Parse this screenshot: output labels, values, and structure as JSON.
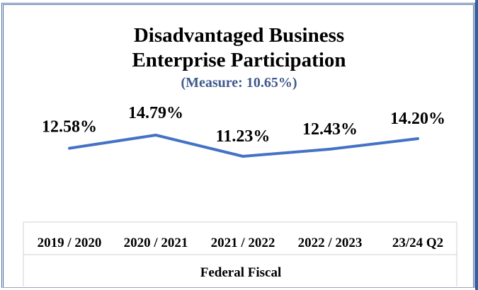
{
  "chart_data": {
    "type": "line",
    "title_line1": "Disadvantaged Business",
    "title_line2": "Enterprise Participation",
    "subtitle": "(Measure: 10.65%)",
    "xlabel": "Federal Fiscal",
    "ylabel": "",
    "categories": [
      "2019 / 2020",
      "2020 / 2021",
      "2021 / 2022",
      "2022 / 2023",
      "23/24 Q2"
    ],
    "values": [
      12.58,
      14.79,
      11.23,
      12.43,
      14.2
    ],
    "data_labels": [
      "12.58%",
      "14.79%",
      "11.23%",
      "12.43%",
      "14.20%"
    ],
    "ylim": [
      11.23,
      14.79
    ],
    "line_color": "#4472c4",
    "grid": false,
    "legend": "none"
  }
}
